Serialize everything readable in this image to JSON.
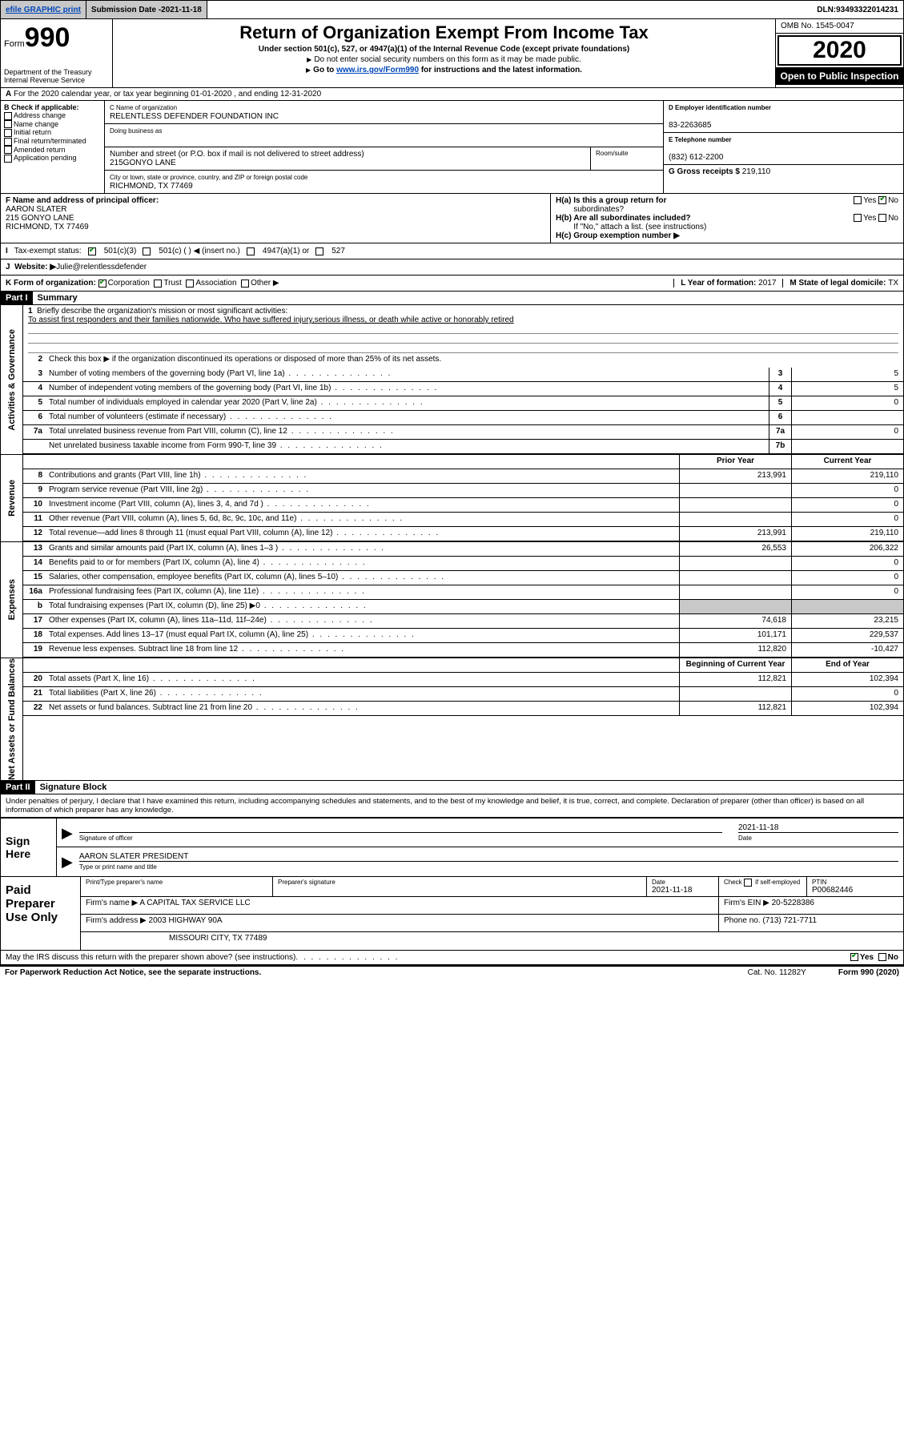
{
  "topbar": {
    "efile": "efile GRAPHIC print",
    "submission_label": "Submission Date - ",
    "submission_date": "2021-11-18",
    "dln_label": "DLN: ",
    "dln": "93493322014231"
  },
  "header": {
    "form_word": "Form",
    "form_num": "990",
    "dept1": "Department of the Treasury",
    "dept2": "Internal Revenue Service",
    "title": "Return of Organization Exempt From Income Tax",
    "sub": "Under section 501(c), 527, or 4947(a)(1) of the Internal Revenue Code (except private foundations)",
    "note1": "Do not enter social security numbers on this form as it may be made public.",
    "note2_pre": "Go to ",
    "note2_link": "www.irs.gov/Form990",
    "note2_post": " for instructions and the latest information.",
    "omb": "OMB No. 1545-0047",
    "year": "2020",
    "open": "Open to Public Inspection"
  },
  "rowA": "For the 2020 calendar year, or tax year beginning 01-01-2020   , and ending 12-31-2020",
  "colB": {
    "label": "B Check if applicable:",
    "items": [
      "Address change",
      "Name change",
      "Initial return",
      "Final return/terminated",
      "Amended return",
      "Application pending"
    ]
  },
  "orgbox": {
    "c_cap": "C Name of organization",
    "c_name": "RELENTLESS DEFENDER FOUNDATION INC",
    "dba_cap": "Doing business as",
    "addr_cap": "Number and street (or P.O. box if mail is not delivered to street address)",
    "addr": "215GONYO LANE",
    "suite_cap": "Room/suite",
    "city_cap": "City or town, state or province, country, and ZIP or foreign postal code",
    "city": "RICHMOND, TX  77469"
  },
  "colR": {
    "d_cap": "D Employer identification number",
    "d_val": "83-2263685",
    "e_cap": "E Telephone number",
    "e_val": "(832) 612-2200",
    "g_cap": "G Gross receipts $ ",
    "g_val": "219,110"
  },
  "f": {
    "cap": "F  Name and address of principal officer:",
    "name": "AARON SLATER",
    "addr1": "215 GONYO LANE",
    "addr2": "RICHMOND, TX  77469"
  },
  "h": {
    "ha_label": "H(a)  Is this a group return for",
    "ha_label2": "subordinates?",
    "hb_label": "H(b)  Are all subordinates included?",
    "hb_note": "If \"No,\" attach a list. (see instructions)",
    "hc_label": "H(c)  Group exemption number ▶",
    "yes": "Yes",
    "no": "No"
  },
  "rowI": {
    "label": "Tax-exempt status:",
    "opts": [
      "501(c)(3)",
      "501(c) (   ) ◀ (insert no.)",
      "4947(a)(1) or",
      "527"
    ]
  },
  "rowJ": {
    "label": "Website: ▶ ",
    "val": "Julie@relentlessdefender"
  },
  "rowK": {
    "label": "K Form of organization:",
    "opts": [
      "Corporation",
      "Trust",
      "Association",
      "Other ▶"
    ],
    "l_label": "L Year of formation: ",
    "l_val": "2017",
    "m_label": "M State of legal domicile: ",
    "m_val": "TX"
  },
  "partI": {
    "hdr": "Part I",
    "title": "Summary",
    "side_gov": "Activities & Governance",
    "side_rev": "Revenue",
    "side_exp": "Expenses",
    "side_net": "Net Assets or Fund Balances",
    "l1": "Briefly describe the organization's mission or most significant activities:",
    "l1_text": "To assist first responders and their families nationwide. Who have suffered injury,serious illness, or death while active or honorably retired",
    "l2": "Check this box ▶      if the organization discontinued its operations or disposed of more than 25% of its net assets.",
    "lines_gov": [
      {
        "n": "3",
        "t": "Number of voting members of the governing body (Part VI, line 1a)",
        "b": "3",
        "v": "5"
      },
      {
        "n": "4",
        "t": "Number of independent voting members of the governing body (Part VI, line 1b)",
        "b": "4",
        "v": "5"
      },
      {
        "n": "5",
        "t": "Total number of individuals employed in calendar year 2020 (Part V, line 2a)",
        "b": "5",
        "v": "0"
      },
      {
        "n": "6",
        "t": "Total number of volunteers (estimate if necessary)",
        "b": "6",
        "v": ""
      },
      {
        "n": "7a",
        "t": "Total unrelated business revenue from Part VIII, column (C), line 12",
        "b": "7a",
        "v": "0"
      },
      {
        "n": "",
        "t": "Net unrelated business taxable income from Form 990-T, line 39",
        "b": "7b",
        "v": ""
      }
    ],
    "hdr_prior": "Prior Year",
    "hdr_curr": "Current Year",
    "lines_rev": [
      {
        "n": "8",
        "t": "Contributions and grants (Part VIII, line 1h)",
        "p": "213,991",
        "c": "219,110"
      },
      {
        "n": "9",
        "t": "Program service revenue (Part VIII, line 2g)",
        "p": "",
        "c": "0"
      },
      {
        "n": "10",
        "t": "Investment income (Part VIII, column (A), lines 3, 4, and 7d )",
        "p": "",
        "c": "0"
      },
      {
        "n": "11",
        "t": "Other revenue (Part VIII, column (A), lines 5, 6d, 8c, 9c, 10c, and 11e)",
        "p": "",
        "c": "0"
      },
      {
        "n": "12",
        "t": "Total revenue—add lines 8 through 11 (must equal Part VIII, column (A), line 12)",
        "p": "213,991",
        "c": "219,110"
      }
    ],
    "lines_exp": [
      {
        "n": "13",
        "t": "Grants and similar amounts paid (Part IX, column (A), lines 1–3 )",
        "p": "26,553",
        "c": "206,322"
      },
      {
        "n": "14",
        "t": "Benefits paid to or for members (Part IX, column (A), line 4)",
        "p": "",
        "c": "0"
      },
      {
        "n": "15",
        "t": "Salaries, other compensation, employee benefits (Part IX, column (A), lines 5–10)",
        "p": "",
        "c": "0"
      },
      {
        "n": "16a",
        "t": "Professional fundraising fees (Part IX, column (A), line 11e)",
        "p": "",
        "c": "0"
      },
      {
        "n": "b",
        "t": "Total fundraising expenses (Part IX, column (D), line 25) ▶0",
        "p": "SHADE",
        "c": "SHADE"
      },
      {
        "n": "17",
        "t": "Other expenses (Part IX, column (A), lines 11a–11d, 11f–24e)",
        "p": "74,618",
        "c": "23,215"
      },
      {
        "n": "18",
        "t": "Total expenses. Add lines 13–17 (must equal Part IX, column (A), line 25)",
        "p": "101,171",
        "c": "229,537"
      },
      {
        "n": "19",
        "t": "Revenue less expenses. Subtract line 18 from line 12",
        "p": "112,820",
        "c": "-10,427"
      }
    ],
    "hdr_begin": "Beginning of Current Year",
    "hdr_end": "End of Year",
    "lines_net": [
      {
        "n": "20",
        "t": "Total assets (Part X, line 16)",
        "p": "112,821",
        "c": "102,394"
      },
      {
        "n": "21",
        "t": "Total liabilities (Part X, line 26)",
        "p": "",
        "c": "0"
      },
      {
        "n": "22",
        "t": "Net assets or fund balances. Subtract line 21 from line 20",
        "p": "112,821",
        "c": "102,394"
      }
    ]
  },
  "partII": {
    "hdr": "Part II",
    "title": "Signature Block",
    "decl": "Under penalties of perjury, I declare that I have examined this return, including accompanying schedules and statements, and to the best of my knowledge and belief, it is true, correct, and complete. Declaration of preparer (other than officer) is based on all information of which preparer has any knowledge."
  },
  "sign": {
    "label": "Sign Here",
    "sig_cap": "Signature of officer",
    "date_val": "2021-11-18",
    "date_cap": "Date",
    "name": "AARON SLATER PRESIDENT",
    "name_cap": "Type or print name and title"
  },
  "paid": {
    "label": "Paid Preparer Use Only",
    "h1": "Print/Type preparer's name",
    "h2": "Preparer's signature",
    "h3": "Date",
    "h3v": "2021-11-18",
    "h4a": "Check",
    "h4b": "if self-employed",
    "h5": "PTIN",
    "h5v": "P00682446",
    "firm_lbl": "Firm's name    ▶ ",
    "firm": "A CAPITAL TAX SERVICE LLC",
    "ein_lbl": "Firm's EIN ▶ ",
    "ein": "20-5228386",
    "addr_lbl": "Firm's address ▶ ",
    "addr1": "2003 HIGHWAY 90A",
    "addr2": "MISSOURI CITY, TX  77489",
    "phone_lbl": "Phone no. ",
    "phone": "(713) 721-7711"
  },
  "footer": {
    "q": "May the IRS discuss this return with the preparer shown above? (see instructions)",
    "yes": "Yes",
    "no": "No",
    "pra": "For Paperwork Reduction Act Notice, see the separate instructions.",
    "cat": "Cat. No. 11282Y",
    "form": "Form 990 (2020)"
  },
  "colors": {
    "shade": "#c8c8c8",
    "link": "#0047bb",
    "check": "#008000"
  }
}
